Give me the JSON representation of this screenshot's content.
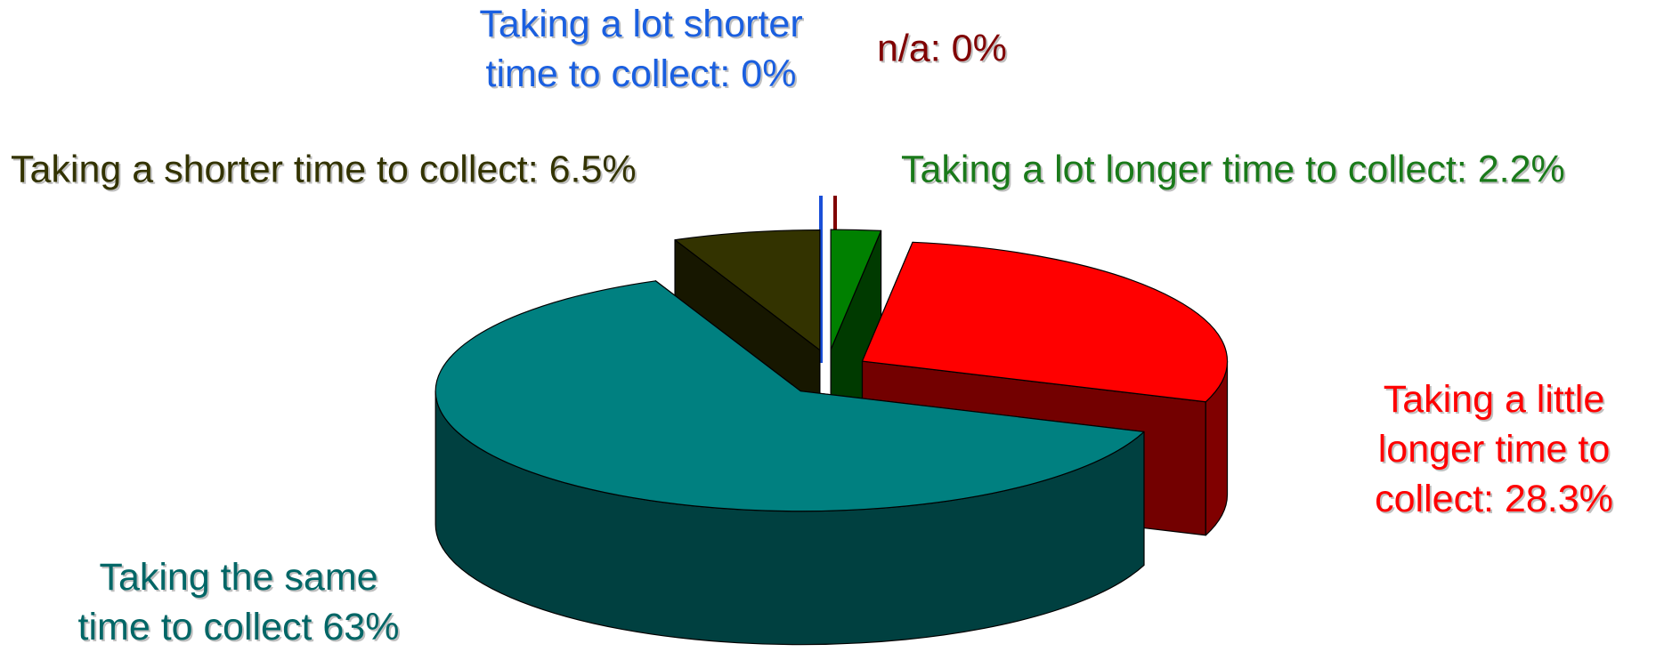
{
  "chart_data": {
    "type": "pie3d",
    "values": [
      0,
      2.2,
      28.3,
      63,
      6.5,
      0
    ],
    "value_labels": [
      "n/a: 0%",
      "Taking a lot longer time to collect: 2.2%",
      "Taking a little\nlonger time to\ncollect: 28.3%",
      "Taking the same\ntime to collect 63%",
      "Taking a shorter time to collect: 6.5%",
      "Taking a lot shorter\ntime to collect: 0%"
    ],
    "colors": [
      "#800000",
      "#008000",
      "#ff0000",
      "#008080",
      "#333300",
      "#1a4fd8"
    ],
    "label_colors": [
      "#800000",
      "#1a7a1a",
      "#ff0000",
      "#006666",
      "#333300",
      "#1a5fe0"
    ]
  }
}
